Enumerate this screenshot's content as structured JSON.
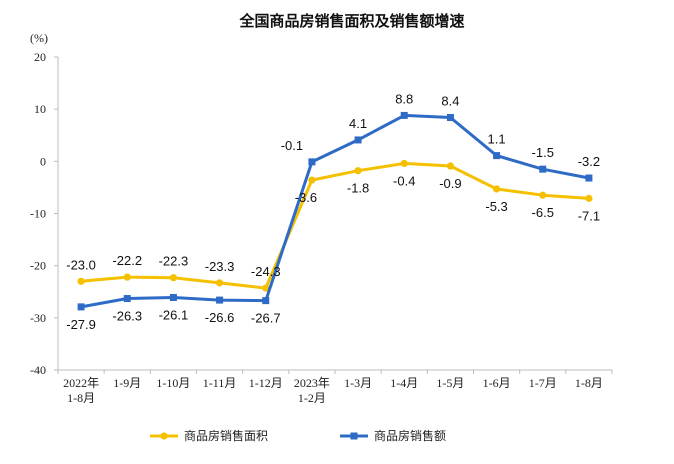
{
  "chart_data": {
    "type": "line",
    "title": "全国商品房销售面积及销售额增速",
    "unit_label": "(%)",
    "ylim": [
      -40,
      20
    ],
    "yticks": [
      "20",
      "10",
      "0",
      "-10",
      "-20",
      "-30",
      "-40"
    ],
    "categories": [
      [
        "2022年",
        "1-8月"
      ],
      [
        "1-9月"
      ],
      [
        "1-10月"
      ],
      [
        "1-11月"
      ],
      [
        "1-12月"
      ],
      [
        "2023年",
        "1-2月"
      ],
      [
        "1-3月"
      ],
      [
        "1-4月"
      ],
      [
        "1-5月"
      ],
      [
        "1-6月"
      ],
      [
        "1-7月"
      ],
      [
        "1-8月"
      ]
    ],
    "grid": false,
    "legend_position": "bottom",
    "series": [
      {
        "name": "商品房销售面积",
        "color": "#F5C000",
        "values": [
          -23.0,
          -22.2,
          -22.3,
          -23.3,
          -24.3,
          -3.6,
          -1.8,
          -0.4,
          -0.9,
          -5.3,
          -6.5,
          -7.1
        ],
        "labels": [
          "-23.0",
          "-22.2",
          "-22.3",
          "-23.3",
          "-24.3",
          "-3.6",
          "-1.8",
          "-0.4",
          "-0.9",
          "-5.3",
          "-6.5",
          "-7.1"
        ]
      },
      {
        "name": "商品房销售额",
        "color": "#2E6BC6",
        "values": [
          -27.9,
          -26.3,
          -26.1,
          -26.6,
          -26.7,
          -0.1,
          4.1,
          8.8,
          8.4,
          1.1,
          -1.5,
          -3.2
        ],
        "labels": [
          "-27.9",
          "-26.3",
          "-26.1",
          "-26.6",
          "-26.7",
          "-0.1",
          "4.1",
          "8.8",
          "8.4",
          "1.1",
          "-1.5",
          "-3.2"
        ]
      }
    ]
  }
}
